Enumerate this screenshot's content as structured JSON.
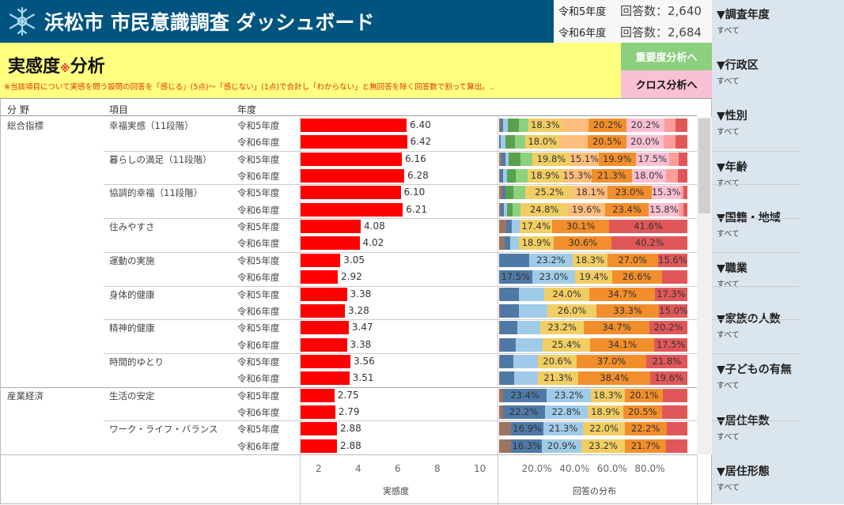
{
  "header": {
    "title": "浜松市 市民意識調査 ダッシュボード",
    "logo_icon": "snowflake-crest-icon"
  },
  "stats": [
    {
      "year": "令和5年度",
      "count": "回答数：2,640"
    },
    {
      "year": "令和6年度",
      "count": "回答数：2,684"
    }
  ],
  "page": {
    "title": "実感度",
    "title_mark": "※",
    "title_suffix": "分析",
    "note": "※当該項目について実感を問う設問の回答を「感じる」(5点)～「感じない」(1点)で合計し「わからない」と無回答を除く回答数で割って算出。.."
  },
  "nav": {
    "importance": "重要度分析へ",
    "cross": "クロス分析へ"
  },
  "filters": [
    {
      "label": "▼調査年度",
      "value": "すべて"
    },
    {
      "label": "▼行政区",
      "value": "すべて"
    },
    {
      "label": "▼性別",
      "value": "すべて"
    },
    {
      "label": "▼年齢",
      "value": "すべて"
    },
    {
      "label": "▼国籍・地域",
      "value": "すべて"
    },
    {
      "label": "▼職業",
      "value": "すべて"
    },
    {
      "label": "▼家族の人数",
      "value": "すべて"
    },
    {
      "label": "▼子どもの有無",
      "value": "すべて"
    },
    {
      "label": "▼居住年数",
      "value": "すべて"
    },
    {
      "label": "▼居住形態",
      "value": "すべて"
    }
  ],
  "table": {
    "col_field": "分 野",
    "col_item": "項目",
    "col_year": "年度"
  },
  "colors": {
    "header": "#005480",
    "band": "#ffff80",
    "bar": "#ff0000",
    "palette_11": [
      "#9c7461",
      "#4e79a7",
      "#a0cbe8",
      "#59a14f",
      "#8cd17d",
      "#f1ce63",
      "#ffbe7d",
      "#f28e2b",
      "#fabfd2",
      "#ff9d9a",
      "#e15759"
    ],
    "palette_5": [
      "#9c7461",
      "#4e79a7",
      "#a0cbe8",
      "#f1ce63",
      "#f28e2b",
      "#e15759"
    ]
  },
  "chart_data": [
    {
      "type": "bar",
      "xlabel": "実感度",
      "ticks": [
        "2",
        "4",
        "6",
        "8",
        "10"
      ],
      "xlim": [
        1,
        11
      ]
    },
    {
      "type": "bar",
      "stacked": true,
      "xlabel": "回答の分布",
      "ticks": [
        "20.0%",
        "40.0%",
        "60.0%",
        "80.0%"
      ],
      "xlim": [
        0,
        100
      ]
    }
  ],
  "rows": [
    {
      "field": "総合指標",
      "item": "幸福実感（11段階）",
      "year": "令和5年度",
      "score": 6.4,
      "score_label": "6.40",
      "scale": 11,
      "dist": [
        1,
        1,
        2.5,
        6,
        5,
        18.3,
        14,
        20.2,
        20.2,
        6,
        6.3
      ],
      "labeled": [
        5,
        7,
        8
      ]
    },
    {
      "field": "",
      "item": "",
      "year": "令和6年度",
      "score": 6.42,
      "score_label": "6.42",
      "scale": 11,
      "dist": [
        0,
        1,
        2.5,
        5,
        5.5,
        18.0,
        15,
        20.5,
        20.0,
        6,
        6.5
      ],
      "labeled": [
        5,
        7,
        8
      ]
    },
    {
      "field": "",
      "item": "暮らしの満足（11段階）",
      "year": "令和5年度",
      "score": 6.16,
      "score_label": "6.16",
      "scale": 11,
      "dist": [
        1.4,
        1.8,
        2,
        6.3,
        6.3,
        19.8,
        15.1,
        19.9,
        17.5,
        5.3,
        4.5
      ],
      "labeled": [
        5,
        6,
        7,
        8
      ]
    },
    {
      "field": "",
      "item": "",
      "year": "令和6年度",
      "score": 6.28,
      "score_label": "6.28",
      "scale": 11,
      "dist": [
        0.5,
        1.5,
        2,
        5,
        6,
        18.9,
        15.3,
        21.3,
        18.0,
        6.5,
        5
      ],
      "labeled": [
        5,
        6,
        7,
        8
      ]
    },
    {
      "field": "",
      "item": "協調的幸福（11段階）",
      "year": "令和5年度",
      "score": 6.1,
      "score_label": "6.10",
      "scale": 11,
      "dist": [
        1.8,
        1.4,
        0,
        4.2,
        6.3,
        25.2,
        18.1,
        23.0,
        15.3,
        1.5,
        2
      ],
      "labeled": [
        5,
        6,
        7,
        8
      ]
    },
    {
      "field": "",
      "item": "",
      "year": "令和6年度",
      "score": 6.21,
      "score_label": "6.21",
      "scale": 11,
      "dist": [
        1,
        1.5,
        1.5,
        3,
        4.5,
        24.8,
        19.6,
        23.4,
        15.8,
        2.5,
        2
      ],
      "labeled": [
        5,
        6,
        7,
        8
      ]
    },
    {
      "field": "",
      "item": "住みやすさ",
      "year": "令和5年度",
      "score": 4.08,
      "score_label": "4.08",
      "scale": 5,
      "dist": [
        3.9,
        2.8,
        4.2,
        17.4,
        30.1,
        41.6
      ],
      "labeled": [
        3,
        4,
        5
      ]
    },
    {
      "field": "",
      "item": "",
      "year": "令和6年度",
      "score": 4.02,
      "score_label": "4.02",
      "scale": 5,
      "dist": [
        2.9,
        2.8,
        4.6,
        18.9,
        30.6,
        40.2
      ],
      "labeled": [
        3,
        4,
        5
      ]
    },
    {
      "field": "",
      "item": "運動の実施",
      "year": "令和5年度",
      "score": 3.05,
      "score_label": "3.05",
      "scale": 5,
      "dist": [
        0.2,
        15.7,
        23.2,
        18.3,
        27.0,
        15.6
      ],
      "labeled": [
        2,
        3,
        4,
        5
      ]
    },
    {
      "field": "",
      "item": "",
      "year": "令和6年度",
      "score": 2.92,
      "score_label": "2.92",
      "scale": 5,
      "dist": [
        0,
        17.5,
        23.0,
        19.4,
        26.6,
        13.5
      ],
      "labeled": [
        1,
        2,
        3,
        4
      ]
    },
    {
      "field": "",
      "item": "身体的健康",
      "year": "令和5年度",
      "score": 3.38,
      "score_label": "3.38",
      "scale": 5,
      "dist": [
        0.5,
        10,
        13.5,
        24.0,
        34.7,
        17.3
      ],
      "labeled": [
        3,
        4,
        5
      ]
    },
    {
      "field": "",
      "item": "",
      "year": "令和6年度",
      "score": 3.28,
      "score_label": "3.28",
      "scale": 5,
      "dist": [
        0.5,
        10,
        15.2,
        26.0,
        33.3,
        15.0
      ],
      "labeled": [
        3,
        4,
        5
      ]
    },
    {
      "field": "",
      "item": "精神的健康",
      "year": "令和5年度",
      "score": 3.47,
      "score_label": "3.47",
      "scale": 5,
      "dist": [
        0.5,
        9,
        12.4,
        23.2,
        34.7,
        20.2
      ],
      "labeled": [
        3,
        4,
        5
      ]
    },
    {
      "field": "",
      "item": "",
      "year": "令和6年度",
      "score": 3.38,
      "score_label": "3.38",
      "scale": 5,
      "dist": [
        0.5,
        8.5,
        14,
        25.4,
        34.1,
        17.5
      ],
      "labeled": [
        3,
        4,
        5
      ]
    },
    {
      "field": "",
      "item": "時間的ゆとり",
      "year": "令和5年度",
      "score": 3.56,
      "score_label": "3.56",
      "scale": 5,
      "dist": [
        0.5,
        7,
        13.1,
        20.6,
        37.0,
        21.8
      ],
      "labeled": [
        3,
        4,
        5
      ]
    },
    {
      "field": "",
      "item": "",
      "year": "令和6年度",
      "score": 3.51,
      "score_label": "3.51",
      "scale": 5,
      "dist": [
        0.5,
        7.5,
        12.7,
        21.3,
        38.4,
        19.6
      ],
      "labeled": [
        3,
        4,
        5
      ]
    },
    {
      "field": "産業経済",
      "item": "生活の安定",
      "year": "令和5年度",
      "score": 2.75,
      "score_label": "2.75",
      "scale": 5,
      "dist": [
        2,
        23.4,
        23.2,
        18.3,
        20.1,
        13
      ],
      "labeled": [
        1,
        2,
        3,
        4
      ]
    },
    {
      "field": "",
      "item": "",
      "year": "令和6年度",
      "score": 2.79,
      "score_label": "2.79",
      "scale": 5,
      "dist": [
        2,
        22.2,
        22.8,
        18.9,
        20.5,
        13.6
      ],
      "labeled": [
        1,
        2,
        3,
        4
      ]
    },
    {
      "field": "",
      "item": "ワーク・ライフ・バランス",
      "year": "令和5年度",
      "score": 2.88,
      "score_label": "2.88",
      "scale": 5,
      "dist": [
        6.5,
        16.9,
        21.3,
        22.0,
        22.2,
        11.1
      ],
      "labeled": [
        1,
        2,
        3,
        4
      ]
    },
    {
      "field": "",
      "item": "",
      "year": "令和6年度",
      "score": 2.88,
      "score_label": "2.88",
      "scale": 5,
      "dist": [
        6.5,
        16.3,
        20.9,
        23.2,
        21.7,
        11.4
      ],
      "labeled": [
        1,
        2,
        3,
        4
      ]
    }
  ]
}
